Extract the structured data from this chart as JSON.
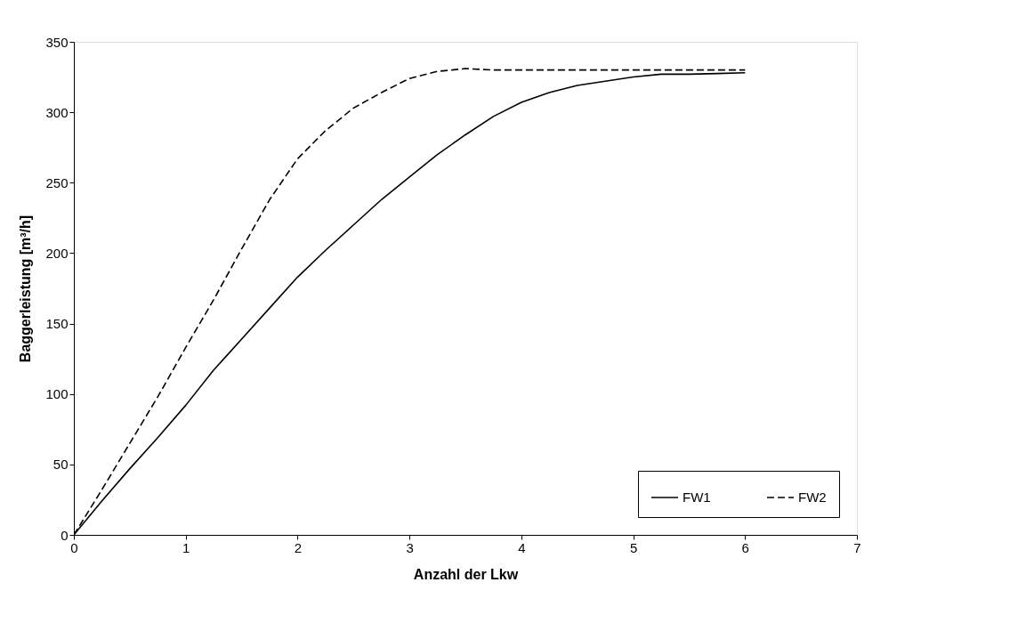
{
  "chart_data": {
    "type": "line",
    "xlabel": "Anzahl der Lkw",
    "ylabel": "Baggerleistung [m³/h]",
    "x": [
      0,
      0.25,
      0.5,
      0.75,
      1,
      1.25,
      1.5,
      1.75,
      2,
      2.25,
      2.5,
      2.75,
      3,
      3.25,
      3.5,
      3.75,
      4,
      4.25,
      4.5,
      4.75,
      5,
      5.25,
      5.5,
      5.75,
      6
    ],
    "series": [
      {
        "name": "FW1",
        "color": "#000000",
        "line_style": "solid",
        "values": [
          0,
          24,
          47,
          69,
          92,
          117,
          139,
          161,
          183,
          202,
          220,
          238,
          254,
          270,
          284,
          297,
          307,
          314,
          319,
          322,
          325,
          327,
          327,
          327.5,
          328
        ]
      },
      {
        "name": "FW2",
        "color": "#000000",
        "line_style": "dashed",
        "values": [
          0,
          32,
          65,
          98,
          133,
          167,
          203,
          238,
          267,
          287,
          303,
          314,
          324,
          329,
          331,
          330,
          330,
          330,
          330,
          330,
          330,
          330,
          330,
          330,
          330
        ]
      }
    ],
    "xlim": [
      0,
      7
    ],
    "xticks": [
      0,
      1,
      2,
      3,
      4,
      5,
      6,
      7
    ],
    "ylim": [
      0,
      350
    ],
    "yticks": [
      0,
      50,
      100,
      150,
      200,
      250,
      300,
      350
    ],
    "grid": false,
    "legend": "bottom right",
    "marker": "none"
  }
}
